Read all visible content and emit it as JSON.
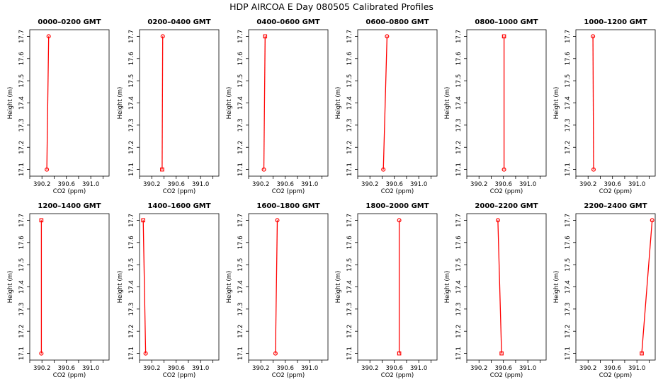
{
  "figure": {
    "title": "HDP AIRCOA E  Day 080505  Calibrated Profiles"
  },
  "colors": {
    "profile": "#ff0000",
    "frame": "#000000"
  },
  "chart_data": [
    {
      "type": "line",
      "title": "0000–0200 GMT",
      "xlabel": "CO2 (ppm)",
      "ylabel": "Height (m)",
      "xlim": [
        390.0,
        391.3
      ],
      "ylim": [
        17.07,
        17.73
      ],
      "xticks": [
        "390.2",
        "390.6",
        "391.0"
      ],
      "yticks": [
        "17.1",
        "17.2",
        "17.3",
        "17.4",
        "17.5",
        "17.6",
        "17.7"
      ],
      "x": [
        390.28,
        390.31
      ],
      "y": [
        17.1,
        17.7
      ],
      "markers": [
        "circle",
        "circle"
      ]
    },
    {
      "type": "line",
      "title": "0200–0400 GMT",
      "xlabel": "CO2 (ppm)",
      "ylabel": "Height (m)",
      "xlim": [
        390.0,
        391.3
      ],
      "ylim": [
        17.07,
        17.73
      ],
      "xticks": [
        "390.2",
        "390.6",
        "391.0"
      ],
      "yticks": [
        "17.1",
        "17.2",
        "17.3",
        "17.4",
        "17.5",
        "17.6",
        "17.7"
      ],
      "x": [
        390.37,
        390.38
      ],
      "y": [
        17.1,
        17.7
      ],
      "markers": [
        "square",
        "circle"
      ]
    },
    {
      "type": "line",
      "title": "0400–0600 GMT",
      "xlabel": "CO2 (ppm)",
      "ylabel": "Height (m)",
      "xlim": [
        390.0,
        391.3
      ],
      "ylim": [
        17.07,
        17.73
      ],
      "xticks": [
        "390.2",
        "390.6",
        "391.0"
      ],
      "yticks": [
        "17.1",
        "17.2",
        "17.3",
        "17.4",
        "17.5",
        "17.6",
        "17.7"
      ],
      "x": [
        390.25,
        390.27
      ],
      "y": [
        17.1,
        17.7
      ],
      "markers": [
        "circle",
        "square"
      ]
    },
    {
      "type": "line",
      "title": "0600–0800 GMT",
      "xlabel": "CO2 (ppm)",
      "ylabel": "Height (m)",
      "xlim": [
        390.0,
        391.3
      ],
      "ylim": [
        17.07,
        17.73
      ],
      "xticks": [
        "390.2",
        "390.6",
        "391.0"
      ],
      "yticks": [
        "17.1",
        "17.2",
        "17.3",
        "17.4",
        "17.5",
        "17.6",
        "17.7"
      ],
      "x": [
        390.42,
        390.48
      ],
      "y": [
        17.1,
        17.7
      ],
      "markers": [
        "circle",
        "circle"
      ]
    },
    {
      "type": "line",
      "title": "0800–1000 GMT",
      "xlabel": "CO2 (ppm)",
      "ylabel": "Height (m)",
      "xlim": [
        390.0,
        391.3
      ],
      "ylim": [
        17.07,
        17.73
      ],
      "xticks": [
        "390.2",
        "390.6",
        "391.0"
      ],
      "yticks": [
        "17.1",
        "17.2",
        "17.3",
        "17.4",
        "17.5",
        "17.6",
        "17.7"
      ],
      "x": [
        390.61,
        390.61
      ],
      "y": [
        17.1,
        17.7
      ],
      "markers": [
        "circle",
        "square"
      ]
    },
    {
      "type": "line",
      "title": "1000–1200 GMT",
      "xlabel": "CO2 (ppm)",
      "ylabel": "Height (m)",
      "xlim": [
        390.0,
        391.3
      ],
      "ylim": [
        17.07,
        17.73
      ],
      "xticks": [
        "390.2",
        "390.6",
        "391.0"
      ],
      "yticks": [
        "17.1",
        "17.2",
        "17.3",
        "17.4",
        "17.5",
        "17.6",
        "17.7"
      ],
      "x": [
        390.29,
        390.28
      ],
      "y": [
        17.1,
        17.7
      ],
      "markers": [
        "circle",
        "circle"
      ]
    },
    {
      "type": "line",
      "title": "1200–1400 GMT",
      "xlabel": "CO2 (ppm)",
      "ylabel": "Height (m)",
      "xlim": [
        390.0,
        391.3
      ],
      "ylim": [
        17.07,
        17.73
      ],
      "xticks": [
        "390.2",
        "390.6",
        "391.0"
      ],
      "yticks": [
        "17.1",
        "17.2",
        "17.3",
        "17.4",
        "17.5",
        "17.6",
        "17.7"
      ],
      "x": [
        390.19,
        390.19
      ],
      "y": [
        17.1,
        17.7
      ],
      "markers": [
        "circle",
        "square"
      ]
    },
    {
      "type": "line",
      "title": "1400–1600 GMT",
      "xlabel": "CO2 (ppm)",
      "ylabel": "Height (m)",
      "xlim": [
        390.0,
        391.3
      ],
      "ylim": [
        17.07,
        17.73
      ],
      "xticks": [
        "390.2",
        "390.6",
        "391.0"
      ],
      "yticks": [
        "17.1",
        "17.2",
        "17.3",
        "17.4",
        "17.5",
        "17.6",
        "17.7"
      ],
      "x": [
        390.1,
        390.06
      ],
      "y": [
        17.1,
        17.7
      ],
      "markers": [
        "circle",
        "square"
      ]
    },
    {
      "type": "line",
      "title": "1600–1800 GMT",
      "xlabel": "CO2 (ppm)",
      "ylabel": "Height (m)",
      "xlim": [
        390.0,
        391.3
      ],
      "ylim": [
        17.07,
        17.73
      ],
      "xticks": [
        "390.2",
        "390.6",
        "391.0"
      ],
      "yticks": [
        "17.1",
        "17.2",
        "17.3",
        "17.4",
        "17.5",
        "17.6",
        "17.7"
      ],
      "x": [
        390.44,
        390.47
      ],
      "y": [
        17.1,
        17.7
      ],
      "markers": [
        "circle",
        "circle"
      ]
    },
    {
      "type": "line",
      "title": "1800–2000 GMT",
      "xlabel": "CO2 (ppm)",
      "ylabel": "Height (m)",
      "xlim": [
        390.0,
        391.3
      ],
      "ylim": [
        17.07,
        17.73
      ],
      "xticks": [
        "390.2",
        "390.6",
        "391.0"
      ],
      "yticks": [
        "17.1",
        "17.2",
        "17.3",
        "17.4",
        "17.5",
        "17.6",
        "17.7"
      ],
      "x": [
        390.68,
        390.68
      ],
      "y": [
        17.1,
        17.7
      ],
      "markers": [
        "square",
        "circle"
      ]
    },
    {
      "type": "line",
      "title": "2000–2200 GMT",
      "xlabel": "CO2 (ppm)",
      "ylabel": "Height (m)",
      "xlim": [
        390.0,
        391.3
      ],
      "ylim": [
        17.07,
        17.73
      ],
      "xticks": [
        "390.2",
        "390.6",
        "391.0"
      ],
      "yticks": [
        "17.1",
        "17.2",
        "17.3",
        "17.4",
        "17.5",
        "17.6",
        "17.7"
      ],
      "x": [
        390.57,
        390.51
      ],
      "y": [
        17.1,
        17.7
      ],
      "markers": [
        "square",
        "circle"
      ]
    },
    {
      "type": "line",
      "title": "2200–2400 GMT",
      "xlabel": "CO2 (ppm)",
      "ylabel": "Height (m)",
      "xlim": [
        390.0,
        391.3
      ],
      "ylim": [
        17.07,
        17.73
      ],
      "xticks": [
        "390.2",
        "390.6",
        "391.0"
      ],
      "yticks": [
        "17.1",
        "17.2",
        "17.3",
        "17.4",
        "17.5",
        "17.6",
        "17.7"
      ],
      "x": [
        391.08,
        391.25
      ],
      "y": [
        17.1,
        17.7
      ],
      "markers": [
        "square",
        "circle"
      ]
    }
  ]
}
